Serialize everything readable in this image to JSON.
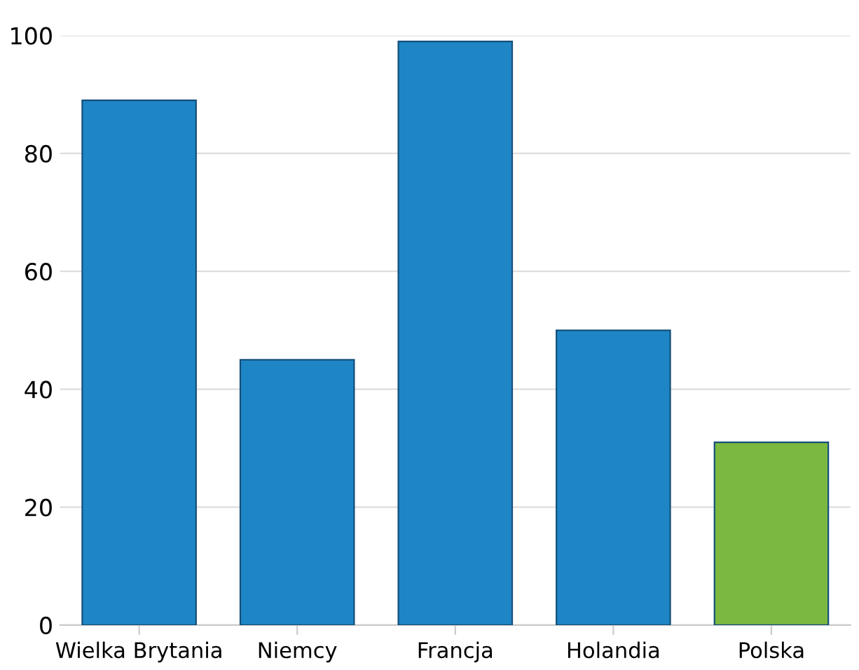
{
  "chart_data": {
    "type": "bar",
    "categories": [
      "Wielka Brytania",
      "Niemcy",
      "Francja",
      "Holandia",
      "Polska"
    ],
    "values": [
      89,
      45,
      99,
      50,
      31
    ],
    "colors": [
      "#1f86c6",
      "#1f86c6",
      "#1f86c6",
      "#1f86c6",
      "#7ab840"
    ],
    "ylim": [
      0,
      100
    ],
    "yticks": [
      0,
      20,
      40,
      60,
      80,
      100
    ],
    "grid": "y"
  }
}
